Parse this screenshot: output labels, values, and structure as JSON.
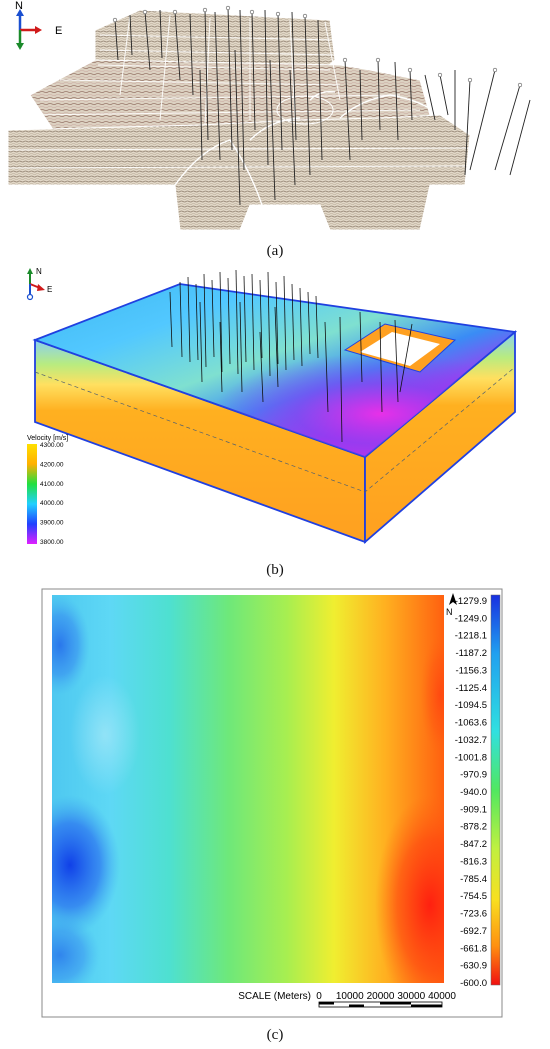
{
  "panel_a": {
    "caption": "(a)",
    "compass": {
      "north": "N",
      "east": "E"
    }
  },
  "panel_b": {
    "caption": "(b)",
    "compass": {
      "north": "N",
      "east": "E"
    },
    "legend": {
      "title": "Velocity [m/s]",
      "ticks": [
        "4300.00",
        "4200.00",
        "4100.00",
        "4000.00",
        "3900.00",
        "3800.00"
      ]
    }
  },
  "panel_c": {
    "caption": "(c)",
    "north": "N",
    "colorbar_ticks": [
      "-1279.9",
      "-1249.0",
      "-1218.1",
      "-1187.2",
      "-1156.3",
      "-1125.4",
      "-1094.5",
      "-1063.6",
      "-1032.7",
      "-1001.8",
      "-970.9",
      "-940.0",
      "-909.1",
      "-878.2",
      "-847.2",
      "-816.3",
      "-785.4",
      "-754.5",
      "-723.6",
      "-692.7",
      "-661.8",
      "-630.9",
      "-600.0"
    ],
    "scale": {
      "label": "SCALE (Meters)",
      "ticks": [
        "0",
        "10000",
        "20000",
        "30000",
        "40000"
      ]
    }
  }
}
